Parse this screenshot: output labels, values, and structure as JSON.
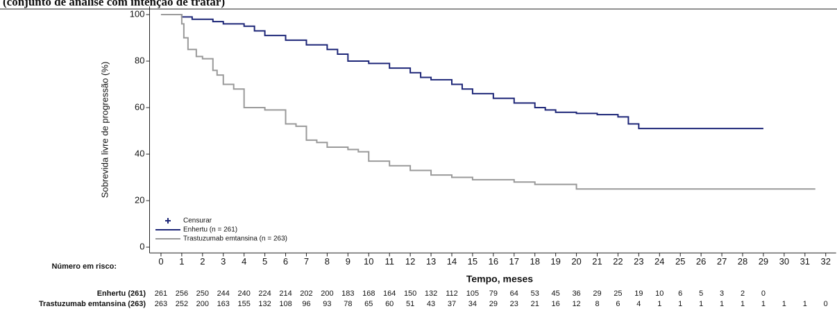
{
  "chart_data": {
    "type": "step",
    "title": "(conjunto de análise com intenção de tratar)",
    "ylabel": "Sobrevida livre de progressão (%)",
    "xlabel": "Tempo, meses",
    "xlim": [
      -0.55,
      32.5
    ],
    "ylim": [
      -2.5,
      103.5
    ],
    "xticks": [
      0,
      1,
      2,
      3,
      4,
      5,
      6,
      7,
      8,
      9,
      10,
      11,
      12,
      13,
      14,
      15,
      16,
      17,
      18,
      19,
      20,
      21,
      22,
      23,
      24,
      25,
      26,
      27,
      28,
      29,
      30,
      31,
      32
    ],
    "yticks": [
      0,
      20,
      40,
      60,
      80,
      100
    ],
    "censor_label": "Censurar",
    "series": [
      {
        "name": "Enhertu (n = 261)",
        "color": "#1c2577",
        "x": [
          0,
          1,
          1.5,
          2.5,
          3,
          4,
          4.5,
          5,
          6,
          7,
          8,
          8.5,
          9,
          10,
          11,
          12,
          12.5,
          13,
          14,
          14.5,
          15,
          16,
          17,
          18,
          18.5,
          19,
          20,
          21,
          22,
          22.5,
          23,
          29
        ],
        "values": [
          100,
          99,
          98,
          97,
          96,
          95,
          93,
          91,
          89,
          87,
          85,
          83,
          80,
          79,
          77,
          75,
          73,
          72,
          70,
          68,
          66,
          64,
          62,
          60,
          59,
          58,
          57.5,
          57,
          56,
          53,
          51,
          51
        ]
      },
      {
        "name": "Trastuzumab emtansina (n = 263)",
        "color": "#999999",
        "x": [
          0,
          1,
          1.1,
          1.3,
          1.7,
          2,
          2.5,
          2.7,
          3,
          3.5,
          4,
          5,
          6,
          6.5,
          7,
          7.5,
          8,
          9,
          9.5,
          10,
          11,
          12,
          13,
          14,
          15,
          16,
          17,
          18,
          19,
          20,
          31.5
        ],
        "values": [
          100,
          96,
          90,
          85,
          82,
          81,
          76,
          74,
          70,
          68,
          60,
          59,
          53,
          52,
          46,
          45,
          43,
          42,
          41,
          37,
          35,
          33,
          31,
          30,
          29,
          29,
          28,
          27,
          27,
          25,
          25
        ]
      }
    ],
    "risk_table": {
      "title": "Número em risco:",
      "rows": [
        {
          "name": "Enhertu (261)",
          "values": [
            261,
            256,
            250,
            244,
            240,
            224,
            214,
            202,
            200,
            183,
            168,
            164,
            150,
            132,
            112,
            105,
            79,
            64,
            53,
            45,
            36,
            29,
            25,
            19,
            10,
            6,
            5,
            3,
            2,
            0
          ]
        },
        {
          "name": "Trastuzumab emtansina (263)",
          "values": [
            263,
            252,
            200,
            163,
            155,
            132,
            108,
            96,
            93,
            78,
            65,
            60,
            51,
            43,
            37,
            34,
            29,
            23,
            21,
            16,
            12,
            8,
            6,
            4,
            1,
            1,
            1,
            1,
            1,
            1,
            1,
            1,
            0
          ]
        }
      ]
    }
  }
}
